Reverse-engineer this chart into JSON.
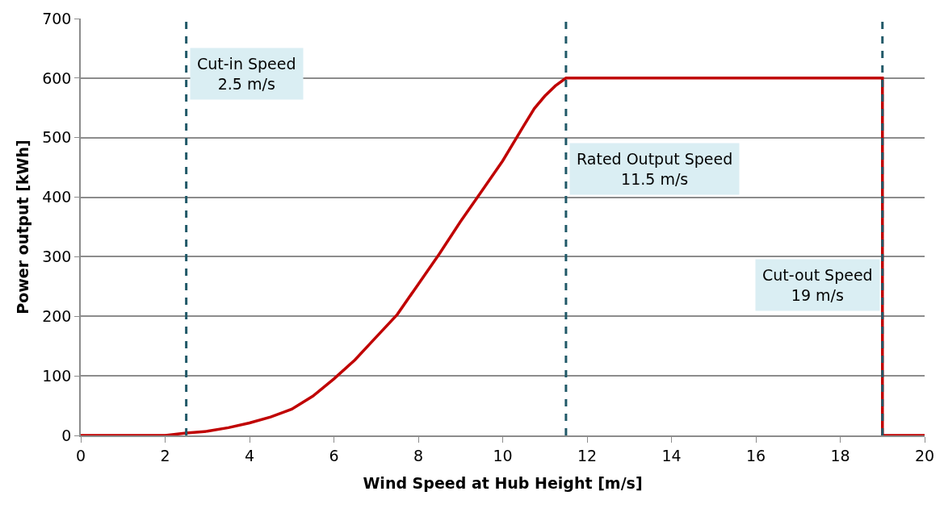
{
  "chart_data": {
    "type": "line",
    "xlabel": "Wind Speed at Hub Height [m/s]",
    "ylabel": "Power output [kWh]",
    "series": [
      {
        "color": "#c00000",
        "x": [
          0,
          2.0,
          2.5,
          3.0,
          3.5,
          4.0,
          4.5,
          5.0,
          5.5,
          6.0,
          6.5,
          7.0,
          7.5,
          8.0,
          8.5,
          9.0,
          9.5,
          10.0,
          10.5,
          10.75,
          11.0,
          11.25,
          11.5,
          19,
          19,
          20
        ],
        "values": [
          0,
          0,
          4,
          7,
          13,
          21,
          31,
          44,
          66,
          95,
          127,
          165,
          203,
          254,
          305,
          359,
          410,
          461,
          520,
          549,
          570,
          587,
          600,
          600,
          0,
          0
        ]
      }
    ],
    "xlim": [
      0,
      20
    ],
    "xticks": [
      0,
      2,
      4,
      6,
      8,
      10,
      12,
      14,
      16,
      18,
      20
    ],
    "ylim": [
      0,
      700
    ],
    "yticks": [
      0,
      100,
      200,
      300,
      400,
      500,
      600,
      700
    ],
    "grid": "y",
    "line_style": "solid",
    "marker": "none",
    "ref_lines": [
      {
        "axis": "x",
        "value": 2.5,
        "label": "Cut-in Speed\n2.5 m/s",
        "color": "#215968",
        "line_style": "dashed"
      },
      {
        "axis": "x",
        "value": 11.5,
        "label": "Rated Output Speed\n11.5 m/s",
        "color": "#215968",
        "line_style": "dashed"
      },
      {
        "axis": "x",
        "value": 19,
        "label": "Cut-out Speed\n19 m/s",
        "color": "#215968",
        "line_style": "dashed"
      }
    ]
  }
}
